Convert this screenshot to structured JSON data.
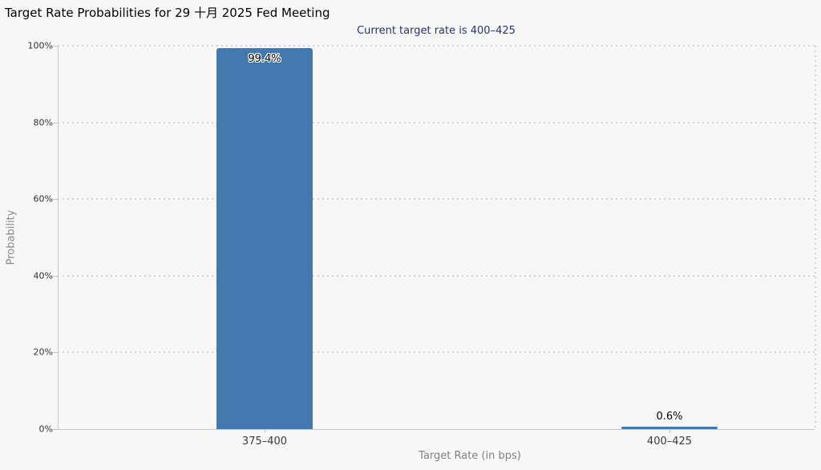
{
  "page": {
    "background": "#f7f7f7"
  },
  "chart_data": {
    "type": "bar",
    "title": "Target Rate Probabilities for 29 十月 2025 Fed Meeting",
    "subtitle": "Current target rate is 400–425",
    "xlabel": "Target Rate (in bps)",
    "ylabel": "Probability",
    "categories": [
      "375–400",
      "400–425"
    ],
    "values": [
      99.4,
      0.6
    ],
    "value_labels": [
      "99.4%",
      "0.6%"
    ],
    "ylim": [
      0,
      100
    ],
    "ytick_step": 20,
    "ytick_labels": [
      "0%",
      "20%",
      "40%",
      "60%",
      "80%",
      "100%"
    ],
    "grid": "dotted horizontal",
    "legend_position": "none",
    "colors": {
      "bar": "#4278ad",
      "title": "#000000",
      "subtitle": "#24356b",
      "axis": "#c6c6c6",
      "grid_dot": "#d4d4d4",
      "tick_label": "#333333",
      "axis_title": "#8a8a8a"
    }
  }
}
